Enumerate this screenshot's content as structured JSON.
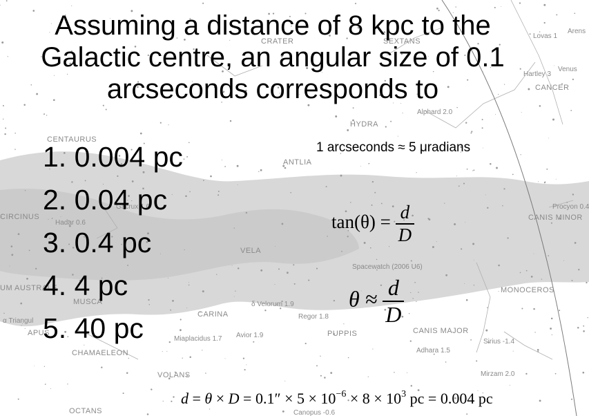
{
  "title_lines": [
    "Assuming a distance of 8 kpc to the",
    "Galactic centre, an angular size of 0.1",
    "arcseconds corresponds to"
  ],
  "answers": [
    "1. 0.004 pc",
    "2. 0.04 pc",
    "3. 0.4 pc",
    "4. 4 pc",
    "5. 40 pc"
  ],
  "note": "1 arcseconds ≈ 5 μradians",
  "equation_tan": {
    "lhs": "tan(θ) =",
    "num": "d",
    "den": "D"
  },
  "equation_approx": {
    "lhs": "θ ≈",
    "num": "d",
    "den": "D"
  },
  "equation_result": {
    "d": "d",
    "eq1": " = ",
    "theta": "θ",
    "times1": " × ",
    "D": "D",
    "eq2": " = 0.1″ × 5 × 10",
    "exp1": "−6",
    "times2": " × 8 × 10",
    "exp2": "3",
    "tail": " pc = 0.004 pc"
  },
  "sky_labels": {
    "constellations": [
      "CENTAURUS",
      "CIRCINUS",
      "ANTLIA",
      "HYDRA",
      "CRATER",
      "SEXTANS",
      "CANCER",
      "CANIS MINOR",
      "MONOCEROS",
      "VELA",
      "MUSCA",
      "CARINA",
      "PUPPIS",
      "CANIS MAJOR",
      "CHAMAELEON",
      "VOLANS",
      "OCTANS",
      "UM AUSTRALE",
      "APUS"
    ],
    "stars": [
      "Alphard 2.0",
      "Lovas 1",
      "Arens",
      "Hartley 3",
      "Venus",
      "Procyon 0.4",
      "Spacewatch (2006 U6)",
      "Regor 1.8",
      "Sirius -1.4",
      "Adhara 1.5",
      "Mirzam 2.0",
      "Avior 1.9",
      "Miaplacidus 1.7",
      "δ Velorum 1.9",
      "Gacrux 1.6",
      "Hadar 0.6",
      "α Triangul",
      "Canopus -0.6"
    ]
  }
}
